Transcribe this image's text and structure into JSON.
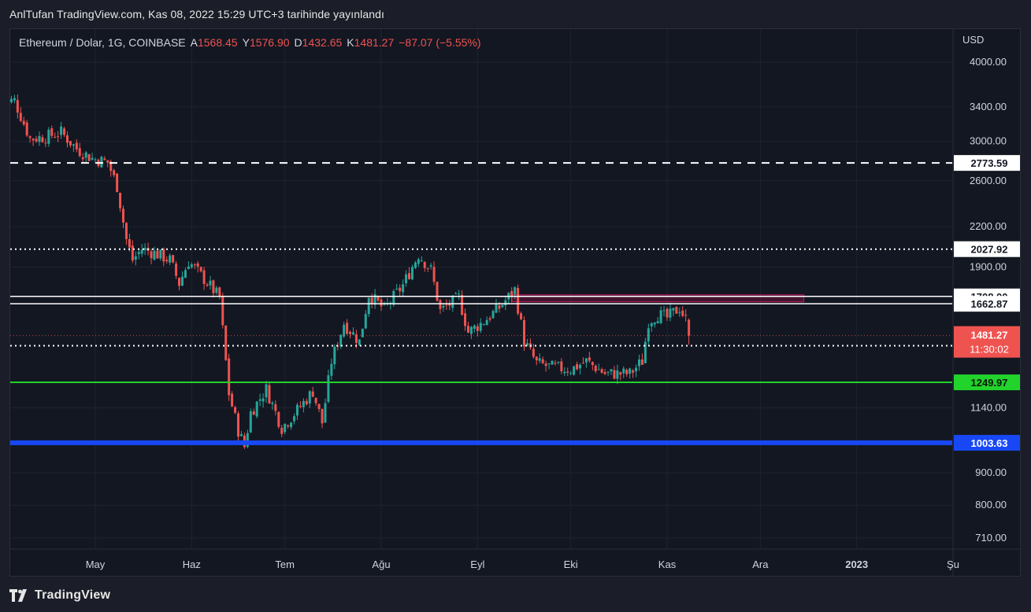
{
  "header": {
    "published_by": "AnlTufan TradingView.com, Kas 08, 2022 15:29 UTC+3 tarihinde yayınlandı"
  },
  "legend": {
    "symbol": "Ethereum / Dolar, 1G, COINBASE",
    "open_label": "A",
    "open": "1568.45",
    "high_label": "Y",
    "high": "1576.90",
    "low_label": "D",
    "low": "1432.65",
    "close_label": "K",
    "close": "1481.27",
    "change": "−87.07 (−5.55%)"
  },
  "footer": {
    "brand": "TradingView",
    "logo_icon": "tradingview-logo-icon"
  },
  "colors": {
    "background": "#131722",
    "grid": "#1f2330",
    "text": "#d1d4dc",
    "up": "#26a69a",
    "down": "#ef5350",
    "green_line": "#22d32b",
    "blue_line": "#1848f5",
    "resistance_box": "#c2185b"
  },
  "chart_data": {
    "type": "candlestick",
    "scale": "log",
    "currency": "USD",
    "y_ticks": [
      "4000.00",
      "3400.00",
      "3000.00",
      "2600.00",
      "2200.00",
      "1900.00",
      "1140.00",
      "900.00",
      "800.00",
      "710.00"
    ],
    "x_labels": [
      {
        "label": "May",
        "date": "2022-05-01"
      },
      {
        "label": "Haz",
        "date": "2022-06-01"
      },
      {
        "label": "Tem",
        "date": "2022-07-01"
      },
      {
        "label": "Ağu",
        "date": "2022-08-01"
      },
      {
        "label": "Eyl",
        "date": "2022-09-01"
      },
      {
        "label": "Eki",
        "date": "2022-10-01"
      },
      {
        "label": "Kas",
        "date": "2022-11-01"
      },
      {
        "label": "Ara",
        "date": "2022-12-01"
      },
      {
        "label": "2023",
        "date": "2023-01-01"
      },
      {
        "label": "Şu",
        "date": "2023-02-01"
      }
    ],
    "date_range": [
      "2022-04-01",
      "2022-11-08"
    ],
    "price_path": [
      [
        "2022-04-01",
        3450
      ],
      [
        "2022-04-05",
        3480
      ],
      [
        "2022-04-10",
        3030
      ],
      [
        "2022-04-15",
        3050
      ],
      [
        "2022-04-20",
        3100
      ],
      [
        "2022-04-25",
        2920
      ],
      [
        "2022-04-30",
        2820
      ],
      [
        "2022-05-05",
        2780
      ],
      [
        "2022-05-08",
        2550
      ],
      [
        "2022-05-11",
        2100
      ],
      [
        "2022-05-13",
        1950
      ],
      [
        "2022-05-16",
        2030
      ],
      [
        "2022-05-20",
        2000
      ],
      [
        "2022-05-25",
        1950
      ],
      [
        "2022-05-28",
        1790
      ],
      [
        "2022-05-31",
        1940
      ],
      [
        "2022-06-05",
        1820
      ],
      [
        "2022-06-10",
        1700
      ],
      [
        "2022-06-13",
        1200
      ],
      [
        "2022-06-16",
        1050
      ],
      [
        "2022-06-18",
        990
      ],
      [
        "2022-06-20",
        1120
      ],
      [
        "2022-06-25",
        1220
      ],
      [
        "2022-06-30",
        1060
      ],
      [
        "2022-07-05",
        1130
      ],
      [
        "2022-07-10",
        1210
      ],
      [
        "2022-07-13",
        1080
      ],
      [
        "2022-07-16",
        1350
      ],
      [
        "2022-07-20",
        1550
      ],
      [
        "2022-07-25",
        1450
      ],
      [
        "2022-07-28",
        1720
      ],
      [
        "2022-08-02",
        1630
      ],
      [
        "2022-08-08",
        1780
      ],
      [
        "2022-08-13",
        1990
      ],
      [
        "2022-08-17",
        1880
      ],
      [
        "2022-08-20",
        1620
      ],
      [
        "2022-08-26",
        1700
      ],
      [
        "2022-08-29",
        1500
      ],
      [
        "2022-09-03",
        1560
      ],
      [
        "2022-09-08",
        1640
      ],
      [
        "2022-09-13",
        1750
      ],
      [
        "2022-09-16",
        1450
      ],
      [
        "2022-09-20",
        1340
      ],
      [
        "2022-09-25",
        1320
      ],
      [
        "2022-10-01",
        1310
      ],
      [
        "2022-10-06",
        1350
      ],
      [
        "2022-10-12",
        1290
      ],
      [
        "2022-10-20",
        1290
      ],
      [
        "2022-10-24",
        1350
      ],
      [
        "2022-10-26",
        1560
      ],
      [
        "2022-10-29",
        1600
      ],
      [
        "2022-11-01",
        1580
      ],
      [
        "2022-11-05",
        1640
      ],
      [
        "2022-11-07",
        1568
      ],
      [
        "2022-11-08",
        1481
      ]
    ],
    "horizontal_levels": [
      {
        "price": 2773.59,
        "label": "2773.59",
        "style": "dashed",
        "color": "#ffffff"
      },
      {
        "price": 2027.92,
        "label": "2027.92",
        "style": "dotted",
        "color": "#ffffff"
      },
      {
        "price": 1708.0,
        "label": "1708.00",
        "style": "solid",
        "color": "#ffffff"
      },
      {
        "price": 1662.87,
        "label": "1662.87",
        "style": "solid",
        "color": "#ffffff"
      },
      {
        "price": 1428.03,
        "label": "1428.03",
        "style": "dotted",
        "color": "#ffffff"
      },
      {
        "price": 1249.97,
        "label": "1249.97",
        "style": "solid",
        "color": "#22d32b"
      },
      {
        "price": 1003.63,
        "label": "1003.63",
        "style": "solid",
        "color": "#1848f5"
      }
    ],
    "resistance_zone": {
      "from_date": "2022-09-12",
      "to_date": "2022-12-15",
      "low": 1675,
      "high": 1718
    },
    "last_price": {
      "price": 1481.27,
      "label": "1481.27",
      "countdown": "11:30:02"
    }
  }
}
